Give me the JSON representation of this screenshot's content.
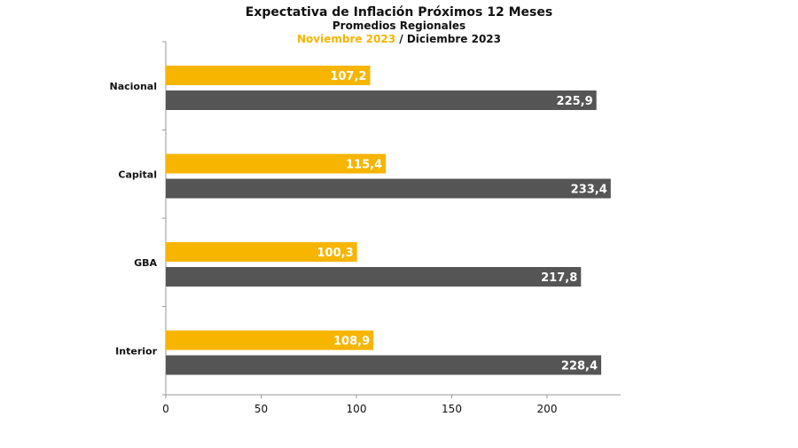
{
  "chart_data": {
    "type": "bar",
    "orientation": "horizontal",
    "title": "Expectativa de Inflación Próximos 12 Meses",
    "subtitle": "Promedios Regionales",
    "legend": {
      "series1": "Noviembre 2023",
      "separator": " / ",
      "series2": "Diciembre 2023",
      "placement": "top"
    },
    "categories": [
      "Nacional",
      "Capital",
      "GBA",
      "Interior"
    ],
    "series": [
      {
        "name": "Noviembre 2023",
        "color": "#F7B500",
        "values": [
          107.2,
          115.4,
          100.3,
          108.9
        ],
        "labels": [
          "107,2",
          "115,4",
          "100,3",
          "108,9"
        ]
      },
      {
        "name": "Diciembre 2023",
        "color": "#555555",
        "values": [
          225.9,
          233.4,
          217.8,
          228.4
        ],
        "labels": [
          "225,9",
          "233,4",
          "217,8",
          "228,4"
        ]
      }
    ],
    "xlim": [
      0,
      240
    ],
    "xticks": [
      0,
      50,
      100,
      150,
      200
    ],
    "grid": false
  }
}
